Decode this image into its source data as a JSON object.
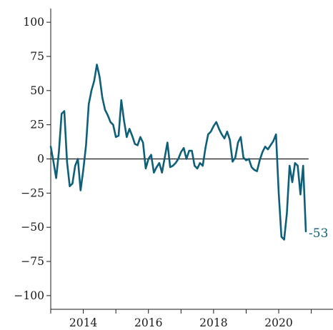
{
  "chart_data": {
    "type": "line",
    "title": "",
    "xlabel": "",
    "ylabel": "",
    "x_start": "2013-01",
    "x_end": "2020-12",
    "xlim": [
      "2013-01",
      "2021-09"
    ],
    "ylim": [
      -110,
      110
    ],
    "yticks": [
      100,
      75,
      50,
      25,
      0,
      -25,
      -50,
      -75,
      -100
    ],
    "ytick_labels": [
      "100",
      "75",
      "50",
      "25",
      "0",
      "−25",
      "−50",
      "−75",
      "−100"
    ],
    "xticks": [
      "2014",
      "2016",
      "2018",
      "2020"
    ],
    "grid": false,
    "zero_line": true,
    "end_label": "-53",
    "colors": {
      "series": "#0e5f7a",
      "axis": "#1a1a1a"
    },
    "series": [
      {
        "values": [
          9,
          -2,
          -14,
          5,
          33,
          35,
          -2,
          -20,
          -18,
          -5,
          0,
          -23,
          -8,
          10,
          40,
          50,
          57,
          69,
          60,
          45,
          36,
          32,
          27,
          25,
          16,
          17,
          43,
          28,
          16,
          22,
          17,
          11,
          10,
          16,
          12,
          -7,
          0,
          3,
          -10,
          -6,
          -3,
          -10,
          1,
          12,
          -6,
          -5,
          -3,
          0,
          5,
          8,
          0,
          6,
          6,
          -5,
          -7,
          -3,
          -5,
          8,
          18,
          20,
          24,
          27,
          22,
          18,
          15,
          20,
          14,
          -2,
          1,
          12,
          16,
          1,
          -1,
          0,
          -6,
          -8,
          -9,
          -1,
          5,
          9,
          7,
          10,
          13,
          18,
          -25,
          -57,
          -59,
          -40,
          -5,
          -17,
          -3,
          -5,
          -26,
          -5,
          -53
        ]
      }
    ]
  }
}
